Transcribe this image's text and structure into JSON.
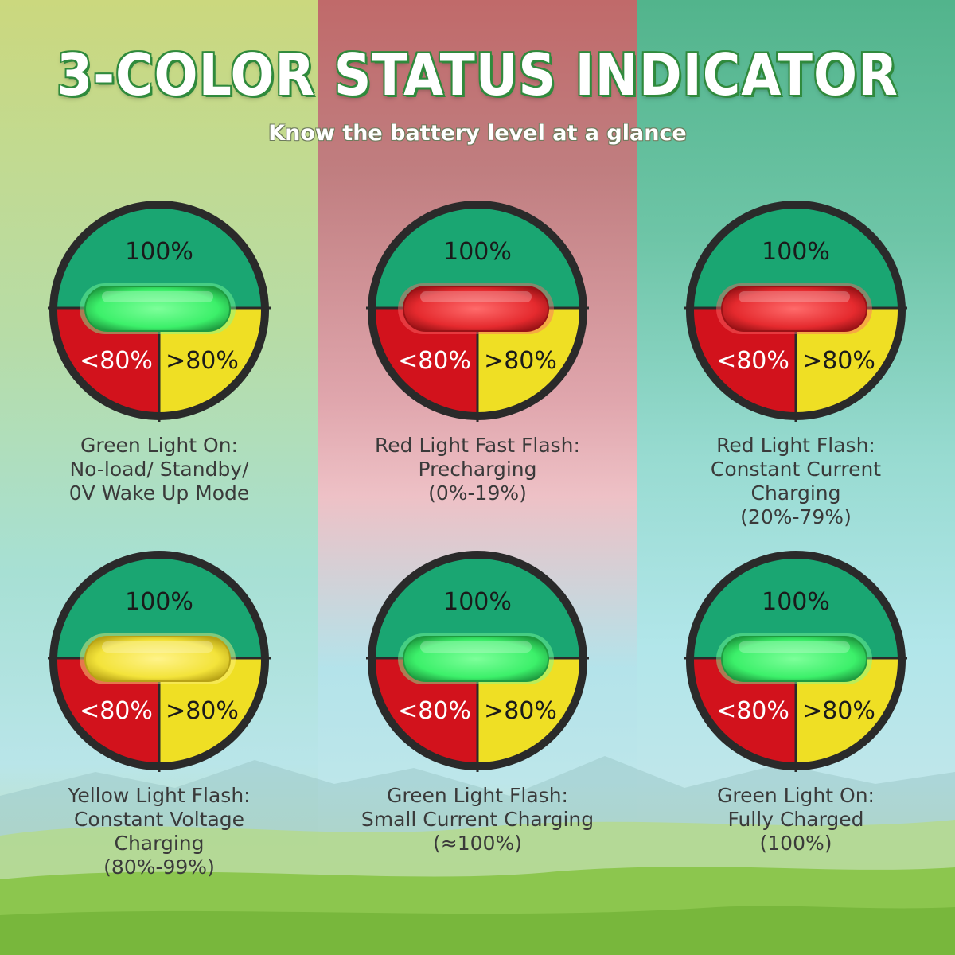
{
  "header": {
    "title": "3-COLOR STATUS INDICATOR",
    "subtitle": "Know the battery level at a glance"
  },
  "colors": {
    "dial_green": "#1aa672",
    "dial_red": "#d2121c",
    "dial_yellow": "#efdf24",
    "dial_ring": "#2a2a2a",
    "led_green": "#3cf06a",
    "led_red": "#e52a2e",
    "led_yellow": "#f3e33a"
  },
  "dial_labels": {
    "top": "100%",
    "left": "<80%",
    "right": ">80%"
  },
  "indicators": [
    {
      "led": "green",
      "lines": [
        "Green Light On:",
        "No-load/ Standby/",
        "0V Wake Up Mode"
      ]
    },
    {
      "led": "red",
      "lines": [
        "Red Light Fast Flash:",
        "Precharging",
        "(0%-19%)"
      ]
    },
    {
      "led": "red",
      "lines": [
        "Red Light Flash:",
        "Constant Current",
        "Charging",
        "(20%-79%)"
      ]
    },
    {
      "led": "yellow",
      "lines": [
        "Yellow Light Flash:",
        "Constant Voltage",
        "Charging",
        "(80%-99%)"
      ]
    },
    {
      "led": "green",
      "lines": [
        "Green Light Flash:",
        "Small Current Charging",
        "(≈100%)"
      ]
    },
    {
      "led": "green",
      "lines": [
        "Green Light On:",
        "Fully Charged",
        "(100%)"
      ]
    }
  ]
}
